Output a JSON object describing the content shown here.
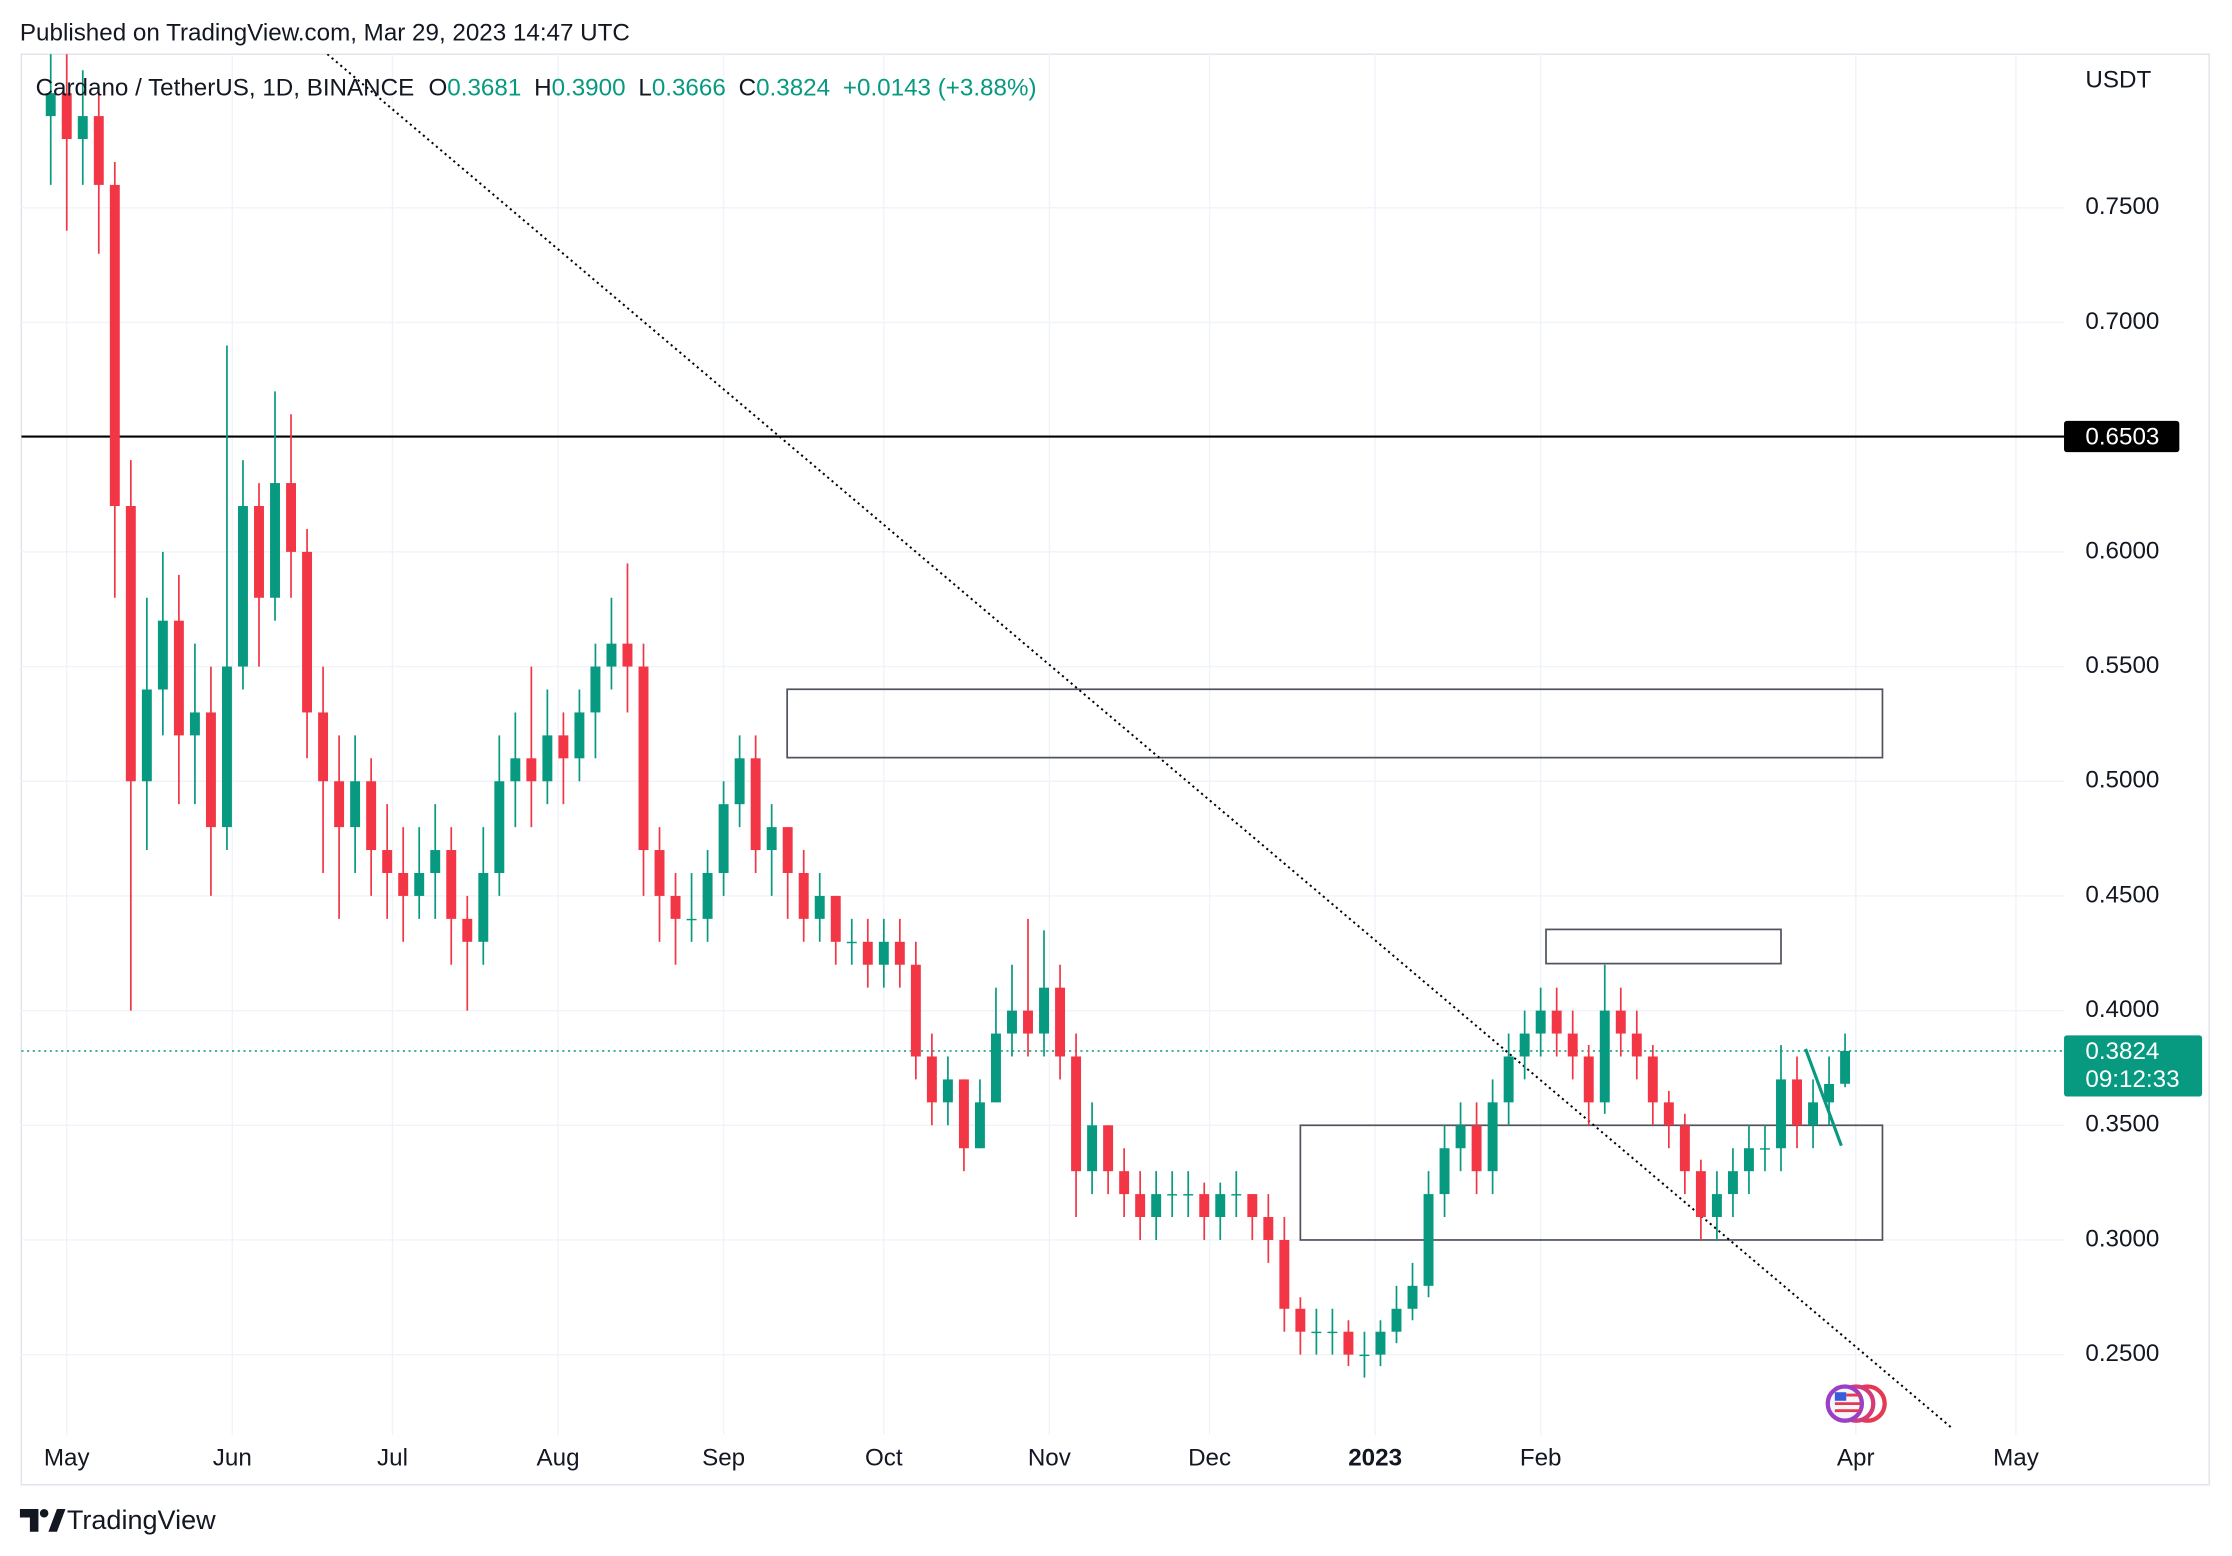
{
  "header": {
    "published": "Published on TradingView.com, Mar 29, 2023 14:47 UTC"
  },
  "chart_data": {
    "type": "candlestick",
    "symbol": "Cardano / TetherUS, 1D, BINANCE",
    "ohlc_legend": [
      {
        "label": "O",
        "value": "0.3681"
      },
      {
        "label": "H",
        "value": "0.3900"
      },
      {
        "label": "L",
        "value": "0.3666"
      },
      {
        "label": "C",
        "value": "0.3824"
      }
    ],
    "change": "+0.0143 (+3.88%)",
    "currency": "USDT",
    "x": [
      -3,
      0,
      3,
      6,
      9,
      12,
      15,
      18,
      21,
      24,
      27,
      30,
      33,
      36,
      39,
      42,
      45,
      48,
      51,
      54,
      57,
      60,
      63,
      66,
      69,
      72,
      75,
      78,
      81,
      84,
      87,
      90,
      93,
      96,
      99,
      102,
      105,
      108,
      111,
      114,
      117,
      120,
      123,
      126,
      129,
      132,
      135,
      138,
      141,
      144,
      147,
      150,
      153,
      156,
      159,
      162,
      165,
      168,
      171,
      174,
      177,
      180,
      183,
      186,
      189,
      192,
      195,
      198,
      201,
      204,
      207,
      210,
      213,
      216,
      219,
      222,
      225,
      228,
      231,
      234,
      237,
      240,
      243,
      246,
      249,
      252,
      255,
      258,
      261,
      264,
      267,
      270,
      273,
      276,
      279,
      282,
      285,
      288,
      291,
      294,
      297,
      300,
      303,
      306,
      309,
      312,
      315,
      318,
      321,
      324,
      327,
      330,
      333
    ],
    "open": [
      0.79,
      0.8,
      0.78,
      0.79,
      0.76,
      0.62,
      0.5,
      0.54,
      0.57,
      0.52,
      0.53,
      0.48,
      0.55,
      0.62,
      0.58,
      0.63,
      0.6,
      0.53,
      0.5,
      0.48,
      0.5,
      0.47,
      0.46,
      0.45,
      0.46,
      0.47,
      0.44,
      0.43,
      0.46,
      0.5,
      0.51,
      0.5,
      0.52,
      0.51,
      0.53,
      0.55,
      0.56,
      0.55,
      0.47,
      0.45,
      0.44,
      0.44,
      0.46,
      0.49,
      0.51,
      0.47,
      0.48,
      0.46,
      0.44,
      0.45,
      0.43,
      0.43,
      0.42,
      0.43,
      0.42,
      0.38,
      0.36,
      0.37,
      0.34,
      0.36,
      0.39,
      0.4,
      0.39,
      0.41,
      0.38,
      0.33,
      0.35,
      0.33,
      0.32,
      0.31,
      0.32,
      0.32,
      0.32,
      0.31,
      0.32,
      0.32,
      0.31,
      0.3,
      0.27,
      0.26,
      0.26,
      0.26,
      0.25,
      0.25,
      0.26,
      0.27,
      0.28,
      0.32,
      0.34,
      0.35,
      0.33,
      0.36,
      0.38,
      0.39,
      0.4,
      0.39,
      0.38,
      0.36,
      0.4,
      0.39,
      0.38,
      0.36,
      0.35,
      0.33,
      0.31,
      0.32,
      0.33,
      0.34,
      0.34,
      0.37,
      0.35,
      0.36,
      0.3681
    ],
    "high": [
      0.82,
      0.82,
      0.81,
      0.8,
      0.77,
      0.64,
      0.58,
      0.6,
      0.59,
      0.56,
      0.55,
      0.69,
      0.64,
      0.63,
      0.67,
      0.66,
      0.61,
      0.55,
      0.52,
      0.52,
      0.51,
      0.49,
      0.48,
      0.48,
      0.49,
      0.48,
      0.45,
      0.48,
      0.52,
      0.53,
      0.55,
      0.54,
      0.53,
      0.54,
      0.56,
      0.58,
      0.595,
      0.56,
      0.48,
      0.46,
      0.46,
      0.47,
      0.5,
      0.52,
      0.52,
      0.49,
      0.48,
      0.47,
      0.46,
      0.45,
      0.44,
      0.44,
      0.44,
      0.44,
      0.43,
      0.39,
      0.38,
      0.37,
      0.37,
      0.41,
      0.42,
      0.44,
      0.435,
      0.42,
      0.39,
      0.36,
      0.35,
      0.34,
      0.33,
      0.33,
      0.33,
      0.33,
      0.325,
      0.325,
      0.33,
      0.32,
      0.32,
      0.31,
      0.275,
      0.27,
      0.27,
      0.265,
      0.26,
      0.265,
      0.28,
      0.29,
      0.33,
      0.35,
      0.36,
      0.36,
      0.37,
      0.39,
      0.4,
      0.41,
      0.41,
      0.4,
      0.385,
      0.42,
      0.41,
      0.4,
      0.385,
      0.365,
      0.355,
      0.335,
      0.33,
      0.34,
      0.35,
      0.35,
      0.385,
      0.38,
      0.37,
      0.38,
      0.39
    ],
    "low": [
      0.76,
      0.74,
      0.76,
      0.73,
      0.58,
      0.4,
      0.47,
      0.52,
      0.49,
      0.49,
      0.45,
      0.47,
      0.54,
      0.55,
      0.57,
      0.58,
      0.51,
      0.46,
      0.44,
      0.46,
      0.45,
      0.44,
      0.43,
      0.44,
      0.44,
      0.42,
      0.4,
      0.42,
      0.45,
      0.48,
      0.48,
      0.49,
      0.49,
      0.5,
      0.51,
      0.54,
      0.53,
      0.45,
      0.43,
      0.42,
      0.43,
      0.43,
      0.45,
      0.48,
      0.46,
      0.45,
      0.44,
      0.43,
      0.43,
      0.42,
      0.42,
      0.41,
      0.41,
      0.41,
      0.37,
      0.35,
      0.35,
      0.33,
      0.34,
      0.36,
      0.38,
      0.38,
      0.38,
      0.37,
      0.31,
      0.32,
      0.32,
      0.31,
      0.3,
      0.3,
      0.31,
      0.31,
      0.3,
      0.3,
      0.31,
      0.3,
      0.29,
      0.26,
      0.25,
      0.25,
      0.25,
      0.245,
      0.24,
      0.245,
      0.255,
      0.265,
      0.275,
      0.31,
      0.33,
      0.32,
      0.32,
      0.35,
      0.37,
      0.38,
      0.38,
      0.37,
      0.35,
      0.355,
      0.38,
      0.37,
      0.35,
      0.34,
      0.32,
      0.3,
      0.3,
      0.31,
      0.32,
      0.33,
      0.33,
      0.34,
      0.34,
      0.35,
      0.3666
    ],
    "close": [
      0.8,
      0.78,
      0.79,
      0.76,
      0.62,
      0.5,
      0.54,
      0.57,
      0.52,
      0.53,
      0.48,
      0.55,
      0.62,
      0.58,
      0.63,
      0.6,
      0.53,
      0.5,
      0.48,
      0.5,
      0.47,
      0.46,
      0.45,
      0.46,
      0.47,
      0.44,
      0.43,
      0.46,
      0.5,
      0.51,
      0.5,
      0.52,
      0.51,
      0.53,
      0.55,
      0.56,
      0.55,
      0.47,
      0.45,
      0.44,
      0.44,
      0.46,
      0.49,
      0.51,
      0.47,
      0.48,
      0.46,
      0.44,
      0.45,
      0.43,
      0.43,
      0.42,
      0.43,
      0.42,
      0.38,
      0.36,
      0.37,
      0.34,
      0.36,
      0.39,
      0.4,
      0.39,
      0.41,
      0.38,
      0.33,
      0.35,
      0.33,
      0.32,
      0.31,
      0.32,
      0.32,
      0.32,
      0.31,
      0.32,
      0.32,
      0.31,
      0.3,
      0.27,
      0.26,
      0.26,
      0.26,
      0.25,
      0.25,
      0.26,
      0.27,
      0.28,
      0.32,
      0.34,
      0.35,
      0.33,
      0.36,
      0.38,
      0.39,
      0.4,
      0.39,
      0.38,
      0.36,
      0.4,
      0.39,
      0.38,
      0.36,
      0.35,
      0.33,
      0.31,
      0.32,
      0.33,
      0.34,
      0.34,
      0.37,
      0.35,
      0.36,
      0.368,
      0.3824
    ],
    "up_color": "#089981",
    "down_color": "#f23645",
    "xlim": [
      -8.5,
      374
    ],
    "ylim": [
      0.215,
      0.817
    ],
    "xticks": [
      {
        "value": 0,
        "label": "May"
      },
      {
        "value": 31,
        "label": "Jun"
      },
      {
        "value": 61,
        "label": "Jul"
      },
      {
        "value": 92,
        "label": "Aug"
      },
      {
        "value": 123,
        "label": "Sep"
      },
      {
        "value": 153,
        "label": "Oct"
      },
      {
        "value": 184,
        "label": "Nov"
      },
      {
        "value": 214,
        "label": "Dec"
      },
      {
        "value": 245,
        "label": "2023",
        "bold": true
      },
      {
        "value": 276,
        "label": "Feb"
      },
      {
        "value": 335,
        "label": "Apr"
      },
      {
        "value": 365,
        "label": "May"
      }
    ],
    "yticks": [
      {
        "value": 0.25,
        "label": "0.2500"
      },
      {
        "value": 0.3,
        "label": "0.3000"
      },
      {
        "value": 0.35,
        "label": "0.3500"
      },
      {
        "value": 0.4,
        "label": "0.4000"
      },
      {
        "value": 0.45,
        "label": "0.4500"
      },
      {
        "value": 0.5,
        "label": "0.5000"
      },
      {
        "value": 0.55,
        "label": "0.5500"
      },
      {
        "value": 0.6,
        "label": "0.6000"
      },
      {
        "value": 0.65,
        "label": "0.6500"
      },
      {
        "value": 0.7,
        "label": "0.7000"
      },
      {
        "value": 0.75,
        "label": "0.7500"
      }
    ],
    "grid": true,
    "last_price": {
      "value": 0.3824,
      "label": "0.3824",
      "countdown": "09:12:33",
      "color": "#089981"
    },
    "hline": {
      "value": 0.6503,
      "label": "0.6503",
      "color": "#000000"
    },
    "rectangles": [
      {
        "x": [
          134.9,
          340
        ],
        "y": [
          0.5103,
          0.5401
        ]
      },
      {
        "x": [
          277,
          321
        ],
        "y": [
          0.4205,
          0.4354
        ]
      },
      {
        "x": [
          231,
          340
        ],
        "y": [
          0.3,
          0.35
        ]
      }
    ],
    "trendlines": [
      {
        "x": [
          48.8,
          352.8
        ],
        "y": [
          0.817,
          0.2184
        ],
        "style": "dotted",
        "color": "#000000"
      },
      {
        "x": [
          325.6,
          332.3
        ],
        "y": [
          0.3833,
          0.3411
        ],
        "style": "solid",
        "color": "#089981"
      }
    ]
  },
  "footer": {
    "brand": "TradingView"
  }
}
